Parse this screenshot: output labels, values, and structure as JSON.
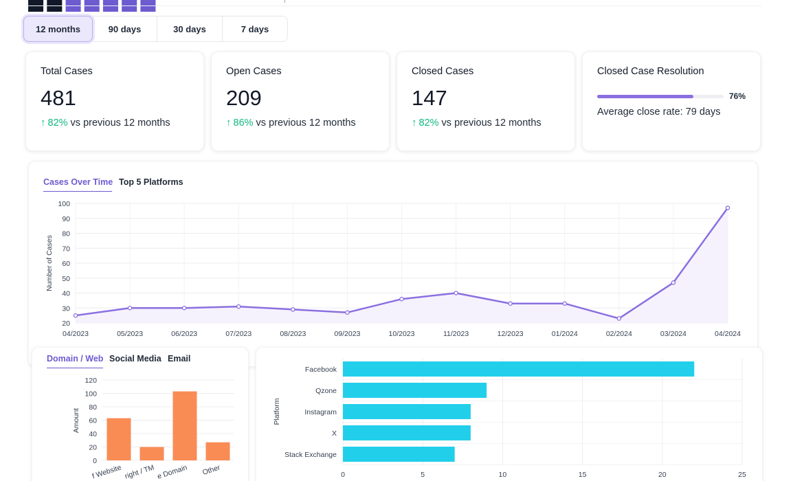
{
  "brand": {
    "accent_color": "#6d5bd0"
  },
  "range_tabs": [
    {
      "label": "12 months",
      "active": true
    },
    {
      "label": "90 days",
      "active": false
    },
    {
      "label": "30 days",
      "active": false
    },
    {
      "label": "7 days",
      "active": false
    }
  ],
  "stats": {
    "total": {
      "title": "Total Cases",
      "value": "481",
      "delta": "82%",
      "delta_suffix": " vs previous 12 months"
    },
    "open": {
      "title": "Open Cases",
      "value": "209",
      "delta": "86%",
      "delta_suffix": " vs previous 12 months"
    },
    "closed": {
      "title": "Closed Cases",
      "value": "147",
      "delta": "82%",
      "delta_suffix": " vs previous 12 months"
    },
    "resolution": {
      "title": "Closed Case Resolution",
      "percent_label": "76%",
      "percent": 0.76,
      "close_rate": "Average close rate: 79 days"
    }
  },
  "colors": {
    "up": "#10b981",
    "line": "#8b6fe0",
    "area": "#f5f2fd",
    "bar_orange": "#f98c55",
    "bar_cyan": "#22cfea"
  },
  "timeline_tabs": [
    {
      "label": "Cases Over Time",
      "active": true
    },
    {
      "label": "Top 5 Platforms",
      "active": false
    }
  ],
  "category_tabs": [
    {
      "label": "Domain / Web",
      "active": true
    },
    {
      "label": "Social Media",
      "active": false
    },
    {
      "label": "Email",
      "active": false
    }
  ],
  "chart_data": [
    {
      "type": "line",
      "x": [
        "04/2023",
        "05/2023",
        "06/2023",
        "07/2023",
        "08/2023",
        "09/2023",
        "10/2023",
        "11/2023",
        "12/2023",
        "01/2024",
        "02/2024",
        "03/2024",
        "04/2024"
      ],
      "values": [
        25,
        30,
        30,
        31,
        29,
        27,
        36,
        40,
        33,
        33,
        23,
        47,
        97
      ],
      "ylabel": "Number of Cases",
      "ylim": [
        20,
        100
      ],
      "yticks": [
        20,
        30,
        40,
        50,
        60,
        70,
        80,
        90,
        100
      ],
      "grid": true
    },
    {
      "type": "bar",
      "categories": [
        "Fake Website",
        "Copyright / TM",
        "Fake Domain",
        "Other"
      ],
      "visible_tick_labels": [
        "f Website",
        "right / TM",
        "e Domain",
        "Other"
      ],
      "values": [
        63,
        20,
        103,
        27
      ],
      "ylabel": "Amount",
      "ylim": [
        0,
        120
      ],
      "yticks": [
        0,
        20,
        40,
        60,
        80,
        100,
        120
      ],
      "grid": true
    },
    {
      "type": "bar",
      "orientation": "horizontal",
      "categories": [
        "Facebook",
        "Qzone",
        "Instagram",
        "X",
        "Stack Exchange"
      ],
      "values": [
        22,
        9,
        8,
        8,
        7
      ],
      "ylabel": "Platform",
      "xlim": [
        0,
        25
      ],
      "xticks": [
        0,
        5,
        10,
        15,
        20,
        25
      ],
      "grid": true
    }
  ]
}
